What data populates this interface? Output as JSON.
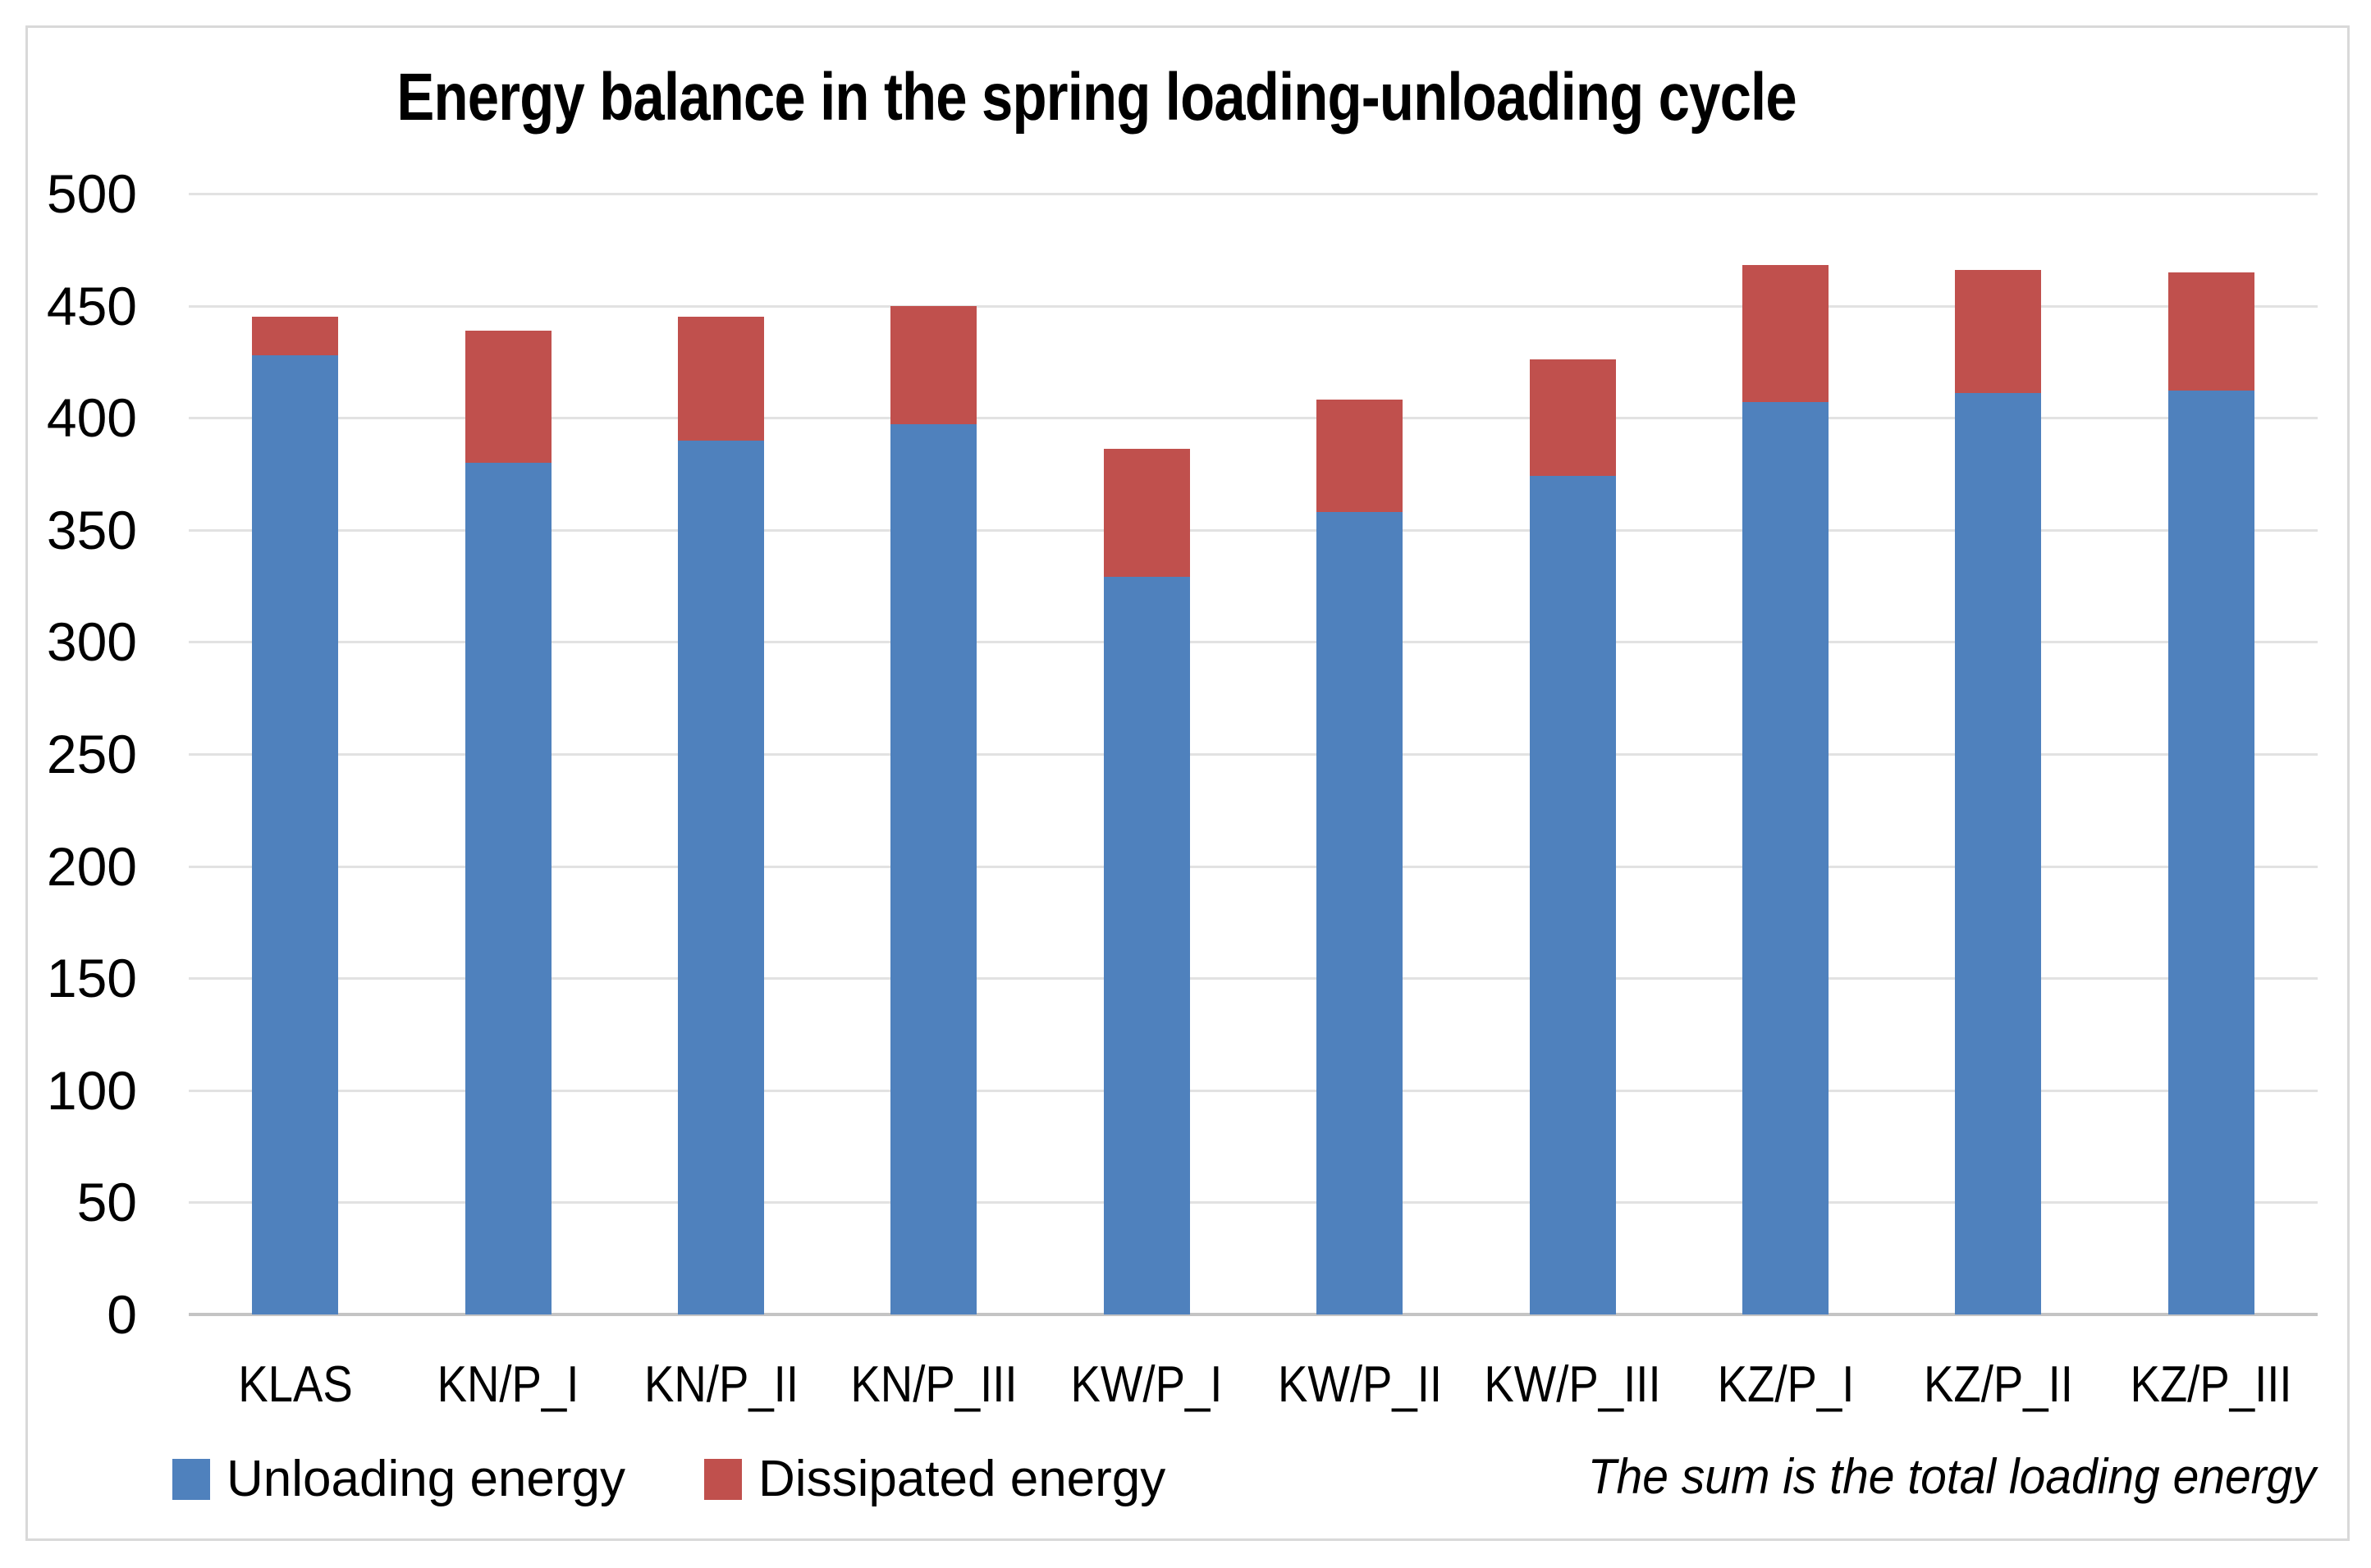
{
  "page": {
    "background": "#ffffff",
    "frame_border_color": "#d9d9d9",
    "gridline_color": "#e2e2e2",
    "axis_line_color": "#c4c4c4",
    "text_color": "#000000"
  },
  "chart_data": {
    "type": "bar",
    "stacked": true,
    "title": "Energy balance in the spring loading-unloading cycle",
    "categories": [
      "KLAS",
      "KN/P_I",
      "KN/P_II",
      "KN/P_III",
      "KW/P_I",
      "KW/P_II",
      "KW/P_III",
      "KZ/P_I",
      "KZ/P_II",
      "KZ/P_III"
    ],
    "series": [
      {
        "name": "Unloading energy",
        "color": "#4F81BD",
        "values": [
          428,
          380,
          390,
          397,
          329,
          358,
          374,
          407,
          411,
          412
        ]
      },
      {
        "name": "Dissipated energy",
        "color": "#C0504D",
        "values": [
          17,
          59,
          55,
          53,
          57,
          50,
          52,
          61,
          55,
          53
        ]
      }
    ],
    "totals": [
      445,
      439,
      445,
      450,
      386,
      408,
      426,
      468,
      466,
      465
    ],
    "annotation": "The sum is the total loading energy",
    "xlabel": "",
    "ylabel": "",
    "ylim": [
      0,
      500
    ],
    "ytick_step": 50,
    "yticks": [
      0,
      50,
      100,
      150,
      200,
      250,
      300,
      350,
      400,
      450,
      500
    ],
    "grid": true,
    "legend_position": "bottom-left"
  }
}
